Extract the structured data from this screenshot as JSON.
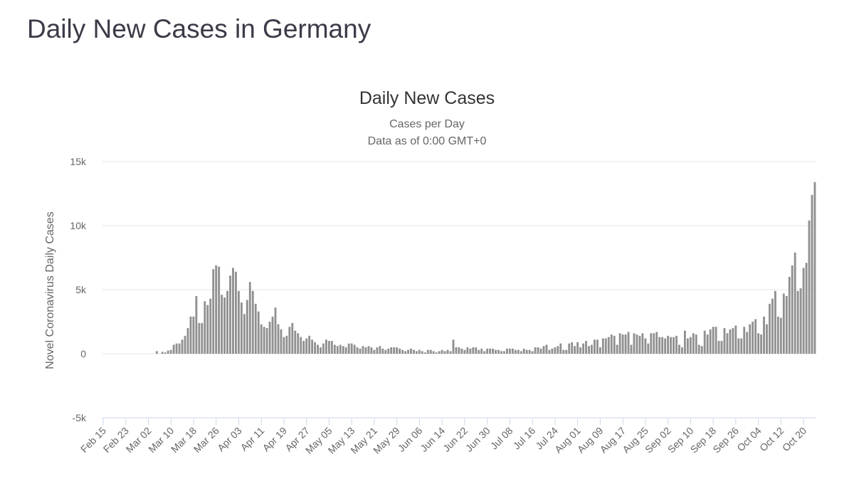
{
  "page": {
    "title": "Daily New Cases in Germany"
  },
  "chart_data": {
    "type": "bar",
    "title": "Daily New Cases",
    "subtitle": "Cases per Day",
    "subtitle2": "Data as of 0:00 GMT+0",
    "ylabel": "Novel Coronavirus Daily Cases",
    "xlabel": "",
    "ylim": [
      -5000,
      15000
    ],
    "y_ticks": [
      {
        "v": 15000,
        "label": "15k"
      },
      {
        "v": 10000,
        "label": "10k"
      },
      {
        "v": 5000,
        "label": "5k"
      },
      {
        "v": 0,
        "label": "0"
      },
      {
        "v": -5000,
        "label": "-5k"
      }
    ],
    "x_tick_labels": [
      "Feb 15",
      "Feb 23",
      "Mar 02",
      "Mar 10",
      "Mar 18",
      "Mar 26",
      "Apr 03",
      "Apr 11",
      "Apr 19",
      "Apr 27",
      "May 05",
      "May 13",
      "May 21",
      "May 29",
      "Jun 06",
      "Jun 14",
      "Jun 22",
      "Jun 30",
      "Jul 08",
      "Jul 16",
      "Jul 24",
      "Aug 01",
      "Aug 09",
      "Aug 17",
      "Aug 25",
      "Sep 02",
      "Sep 10",
      "Sep 18",
      "Sep 26",
      "Oct 04",
      "Oct 12",
      "Oct 20"
    ],
    "x_tick_every_days": 8,
    "x_start": "Feb 15",
    "x_end": "Oct 24",
    "grid": true,
    "bar_color": "#909090",
    "values": [
      0,
      0,
      0,
      0,
      0,
      0,
      0,
      0,
      0,
      0,
      0,
      0,
      0,
      0,
      0,
      0,
      0,
      0,
      0,
      200,
      0,
      150,
      100,
      250,
      300,
      700,
      800,
      800,
      1100,
      1400,
      2000,
      2900,
      2900,
      4500,
      2400,
      2400,
      4100,
      3800,
      4300,
      6600,
      6900,
      6800,
      4600,
      4400,
      4900,
      6100,
      6700,
      6400,
      4900,
      4000,
      3100,
      4200,
      5600,
      4900,
      3900,
      3300,
      2300,
      2100,
      2000,
      2500,
      2900,
      3600,
      2300,
      1900,
      1300,
      1400,
      2100,
      2400,
      1800,
      1600,
      1300,
      1000,
      1200,
      1400,
      1100,
      900,
      700,
      500,
      800,
      1100,
      1000,
      1000,
      700,
      600,
      700,
      600,
      500,
      800,
      800,
      700,
      500,
      400,
      600,
      500,
      600,
      500,
      300,
      500,
      600,
      400,
      300,
      400,
      500,
      500,
      500,
      400,
      300,
      200,
      300,
      400,
      300,
      200,
      300,
      200,
      100,
      300,
      300,
      200,
      100,
      200,
      300,
      200,
      300,
      200,
      1100,
      500,
      500,
      400,
      300,
      500,
      400,
      500,
      500,
      300,
      400,
      200,
      400,
      400,
      400,
      300,
      300,
      200,
      200,
      400,
      400,
      400,
      300,
      300,
      200,
      400,
      300,
      300,
      200,
      500,
      500,
      400,
      600,
      700,
      300,
      400,
      500,
      600,
      800,
      300,
      300,
      800,
      900,
      600,
      900,
      500,
      800,
      1000,
      600,
      700,
      1100,
      1100,
      500,
      1200,
      1200,
      1300,
      1500,
      1400,
      700,
      1600,
      1500,
      1500,
      1700,
      700,
      1600,
      1500,
      1400,
      1600,
      1200,
      800,
      1600,
      1600,
      1700,
      1300,
      1300,
      1200,
      1400,
      1300,
      1300,
      1400,
      700,
      500,
      1800,
      1200,
      1300,
      1600,
      1500,
      700,
      600,
      1800,
      1500,
      1900,
      2100,
      2100,
      1000,
      1000,
      2000,
      1600,
      1900,
      2000,
      2200,
      1200,
      1200,
      2100,
      1700,
      2300,
      2500,
      2700,
      1600,
      1500,
      2900,
      2300,
      3900,
      4300,
      4900,
      2900,
      2800,
      4700,
      4500,
      6000,
      6900,
      7900,
      4900,
      5100,
      6700,
      7100,
      10400,
      12400,
      13400
    ]
  }
}
